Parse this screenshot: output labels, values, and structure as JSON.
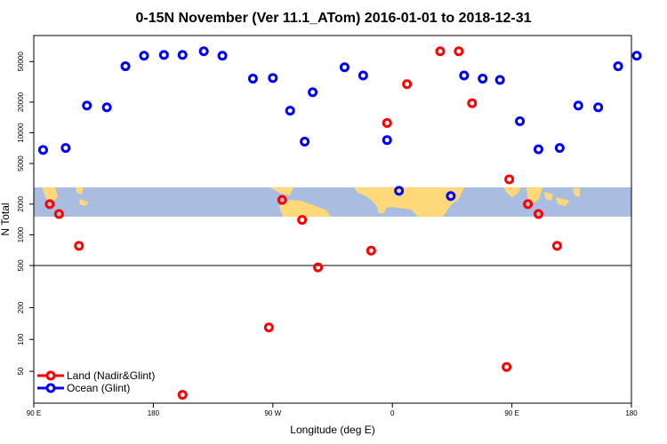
{
  "chart_data": {
    "type": "scatter",
    "title": "0-15N November (Ver 11.1_ATom)   2016-01-01 to 2018-12-31",
    "xlabel": "Longitude (deg E)",
    "ylabel": "N Total",
    "x_ticks": [
      {
        "value": 90,
        "label": "90 E"
      },
      {
        "value": 180,
        "label": "180"
      },
      {
        "value": 270,
        "label": "90 W"
      },
      {
        "value": 360,
        "label": "0"
      },
      {
        "value": 450,
        "label": "90 E"
      },
      {
        "value": 540,
        "label": "180"
      }
    ],
    "xlim": [
      90,
      540
    ],
    "upper_panel": {
      "scale": "log",
      "ylim": [
        500,
        90000
      ],
      "y_ticks": [
        {
          "value": 500,
          "label": "500"
        },
        {
          "value": 1000,
          "label": "1000"
        },
        {
          "value": 2000,
          "label": "2000"
        },
        {
          "value": 5000,
          "label": "5000"
        },
        {
          "value": 10000,
          "label": "10000"
        },
        {
          "value": 20000,
          "label": "20000"
        },
        {
          "value": 50000,
          "label": "50000"
        }
      ]
    },
    "lower_panel": {
      "scale": "log",
      "ylim": [
        25,
        500
      ],
      "y_ticks": [
        {
          "value": 50,
          "label": "50"
        },
        {
          "value": 100,
          "label": "100"
        },
        {
          "value": 200,
          "label": "200"
        },
        {
          "value": 500,
          "label": "500"
        }
      ]
    },
    "map_band": {
      "description": "world map strip",
      "ocean_color": "#a8bde0",
      "land_color": "#ffd87a"
    },
    "series": [
      {
        "name": "Land (Nadir&Glint)",
        "color": "#ff0000",
        "points": [
          {
            "x": 102,
            "y": 2000
          },
          {
            "x": 109,
            "y": 1600
          },
          {
            "x": 124,
            "y": 780
          },
          {
            "x": 202,
            "y": 30
          },
          {
            "x": 267,
            "y": 130
          },
          {
            "x": 277,
            "y": 2200
          },
          {
            "x": 292,
            "y": 1400
          },
          {
            "x": 304,
            "y": 480
          },
          {
            "x": 344,
            "y": 700
          },
          {
            "x": 356,
            "y": 12500
          },
          {
            "x": 371,
            "y": 30000
          },
          {
            "x": 396,
            "y": 63000
          },
          {
            "x": 410,
            "y": 63000
          },
          {
            "x": 420,
            "y": 19500
          },
          {
            "x": 446,
            "y": 55
          },
          {
            "x": 448,
            "y": 3500
          },
          {
            "x": 462,
            "y": 2000
          },
          {
            "x": 470,
            "y": 1600
          },
          {
            "x": 484,
            "y": 780
          }
        ]
      },
      {
        "name": "Ocean (Glint)",
        "color": "#0000ff",
        "points": [
          {
            "x": 97,
            "y": 6800
          },
          {
            "x": 114,
            "y": 7100
          },
          {
            "x": 130,
            "y": 18500
          },
          {
            "x": 145,
            "y": 17800
          },
          {
            "x": 159,
            "y": 45000
          },
          {
            "x": 173,
            "y": 57000
          },
          {
            "x": 188,
            "y": 58000
          },
          {
            "x": 202,
            "y": 58000
          },
          {
            "x": 218,
            "y": 63000
          },
          {
            "x": 232,
            "y": 57000
          },
          {
            "x": 255,
            "y": 34000
          },
          {
            "x": 270,
            "y": 34500
          },
          {
            "x": 283,
            "y": 16500
          },
          {
            "x": 294,
            "y": 8200
          },
          {
            "x": 300,
            "y": 25000
          },
          {
            "x": 324,
            "y": 44000
          },
          {
            "x": 338,
            "y": 36500
          },
          {
            "x": 356,
            "y": 8500
          },
          {
            "x": 365,
            "y": 2700
          },
          {
            "x": 404,
            "y": 2400
          },
          {
            "x": 414,
            "y": 36500
          },
          {
            "x": 428,
            "y": 34000
          },
          {
            "x": 441,
            "y": 33000
          },
          {
            "x": 456,
            "y": 13000
          },
          {
            "x": 470,
            "y": 6900
          },
          {
            "x": 486,
            "y": 7100
          },
          {
            "x": 500,
            "y": 18500
          },
          {
            "x": 515,
            "y": 17800
          },
          {
            "x": 530,
            "y": 45000
          },
          {
            "x": 544,
            "y": 57000
          }
        ]
      }
    ],
    "legend": {
      "position": "bottom-left"
    }
  }
}
